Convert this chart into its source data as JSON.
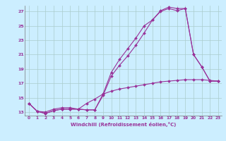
{
  "xlabel": "Windchill (Refroidissement éolien,°C)",
  "background_color": "#cceeff",
  "grid_color": "#aacccc",
  "line_color": "#993399",
  "xlim": [
    -0.5,
    23.4
  ],
  "ylim": [
    12.5,
    27.8
  ],
  "xticks": [
    0,
    1,
    2,
    3,
    4,
    5,
    6,
    7,
    8,
    9,
    10,
    11,
    12,
    13,
    14,
    15,
    16,
    17,
    18,
    19,
    20,
    21,
    22,
    23
  ],
  "yticks": [
    13,
    15,
    17,
    19,
    21,
    23,
    25,
    27
  ],
  "line1_x": [
    0,
    1,
    2,
    3,
    4,
    5,
    6,
    7,
    8,
    9,
    10,
    11,
    12,
    13,
    14,
    15,
    16,
    17,
    18,
    19,
    20,
    21,
    22,
    23
  ],
  "line1_y": [
    14.2,
    13.1,
    12.8,
    13.2,
    13.4,
    13.4,
    13.4,
    13.3,
    13.3,
    15.3,
    18.0,
    19.5,
    20.8,
    22.3,
    24.0,
    25.8,
    27.0,
    27.4,
    27.1,
    27.4,
    21.0,
    19.3,
    17.3,
    17.3
  ],
  "line2_x": [
    0,
    1,
    2,
    3,
    4,
    5,
    6,
    7,
    8,
    9,
    10,
    11,
    12,
    13,
    14,
    15,
    16,
    17,
    18,
    19,
    20,
    21,
    22,
    23
  ],
  "line2_y": [
    14.2,
    13.1,
    12.8,
    13.2,
    13.4,
    13.4,
    13.4,
    13.3,
    13.3,
    15.5,
    18.5,
    20.3,
    21.8,
    23.3,
    25.0,
    25.8,
    27.1,
    27.6,
    27.4,
    27.4,
    21.0,
    19.3,
    17.3,
    17.3
  ],
  "line3_x": [
    0,
    1,
    2,
    3,
    4,
    5,
    6,
    7,
    8,
    9,
    10,
    11,
    12,
    13,
    14,
    15,
    16,
    17,
    18,
    19,
    20,
    21,
    22,
    23
  ],
  "line3_y": [
    14.2,
    13.1,
    13.0,
    13.4,
    13.6,
    13.6,
    13.4,
    14.2,
    14.8,
    15.5,
    15.9,
    16.2,
    16.4,
    16.6,
    16.8,
    17.0,
    17.2,
    17.3,
    17.4,
    17.5,
    17.5,
    17.5,
    17.4,
    17.3
  ]
}
